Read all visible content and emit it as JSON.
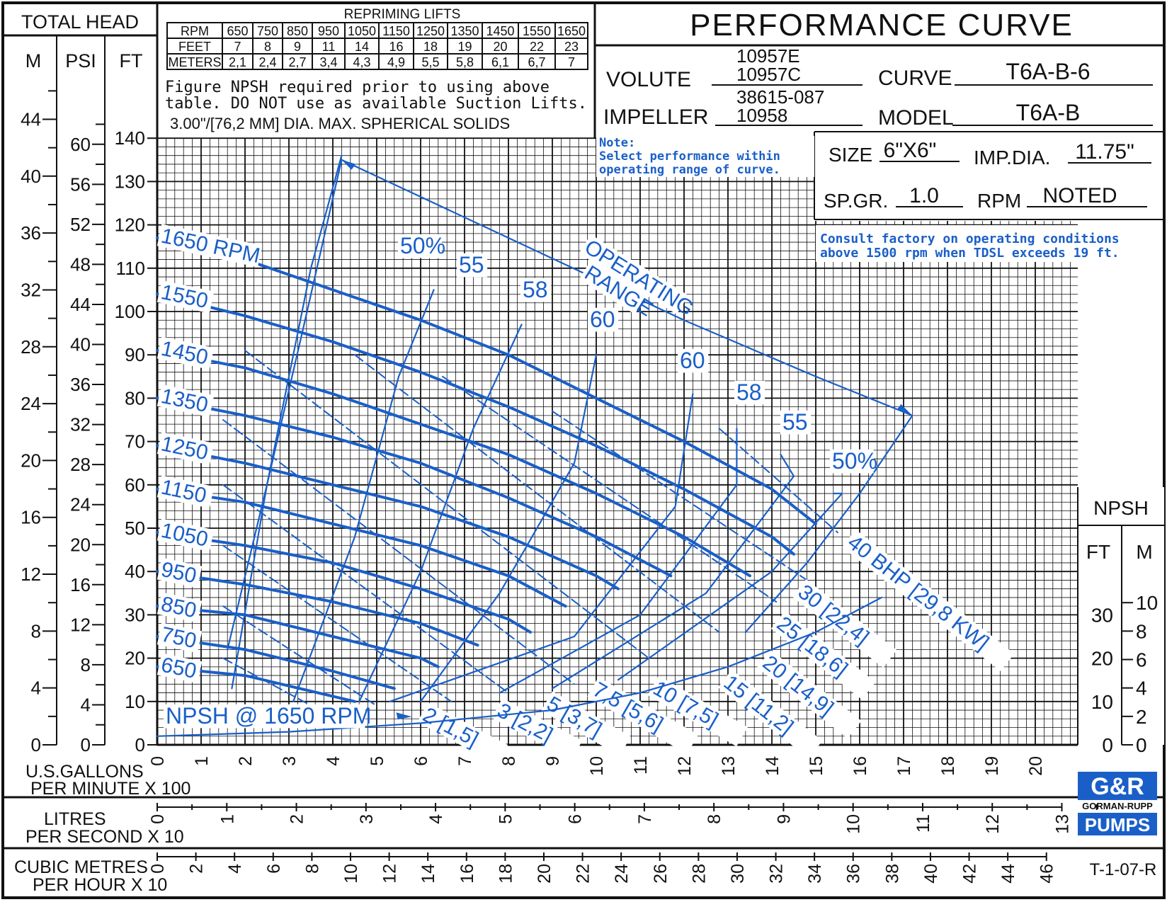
{
  "title_block": {
    "title": "PERFORMANCE CURVE",
    "volute_label": "VOLUTE",
    "volute_values": [
      "10957E",
      "10957C"
    ],
    "impeller_label": "IMPELLER",
    "impeller_values": [
      "38615-087",
      "10958"
    ],
    "curve_label": "CURVE",
    "curve_value": "T6A-B-6",
    "model_label": "MODEL",
    "model_value": "T6A-B",
    "size_label": "SIZE",
    "size_value": "6\"X6\"",
    "imp_dia_label": "IMP.DIA.",
    "imp_dia_value": "11.75\"",
    "sp_gr_label": "SP.GR.",
    "sp_gr_value": "1.0",
    "rpm_label": "RPM",
    "rpm_value": "NOTED",
    "note_lines": [
      "Note:",
      "Select performance within",
      "operating range of curve."
    ],
    "consult_lines": [
      "Consult factory on operating conditions",
      "above 1500 rpm when TDSL exceeds 19 ft."
    ],
    "drawing_number": "T-1-07-R",
    "logo_top": "G&R",
    "logo_name": "GORMAN-RUPP",
    "logo_pumps": "PUMPS"
  },
  "repriming": {
    "title": "REPRIMING LIFTS",
    "row_labels": [
      "RPM",
      "FEET",
      "METERS"
    ],
    "rpm": [
      "650",
      "750",
      "850",
      "950",
      "1050",
      "1150",
      "1250",
      "1350",
      "1450",
      "1550",
      "1650"
    ],
    "feet": [
      "7",
      "8",
      "9",
      "11",
      "14",
      "16",
      "18",
      "19",
      "20",
      "22",
      "23"
    ],
    "meters": [
      "2,1",
      "2,4",
      "2,7",
      "3,4",
      "4,3",
      "4,9",
      "5,5",
      "5,8",
      "6,1",
      "6,7",
      "7"
    ],
    "notes": [
      "Figure NPSH required prior to using above",
      "table. DO NOT use as available Suction Lifts.",
      "3.00\"/[76,2 MM] DIA. MAX. SPHERICAL SOLIDS"
    ]
  },
  "axes": {
    "total_head_label": "TOTAL HEAD",
    "m_label": "M",
    "psi_label": "PSI",
    "ft_label": "FT",
    "m_ticks": [
      "0",
      "4",
      "8",
      "12",
      "16",
      "20",
      "24",
      "28",
      "32",
      "36",
      "40",
      "44"
    ],
    "psi_ticks": [
      "0",
      "4",
      "8",
      "12",
      "16",
      "20",
      "24",
      "28",
      "32",
      "36",
      "40",
      "44",
      "48",
      "52",
      "56",
      "60"
    ],
    "ft_ticks": [
      "0",
      "10",
      "20",
      "30",
      "40",
      "50",
      "60",
      "70",
      "80",
      "90",
      "100",
      "110",
      "120",
      "130",
      "140"
    ],
    "gpm_label_1": "U.S.GALLONS",
    "gpm_label_2": "PER MINUTE X 100",
    "gpm_ticks": [
      "0",
      "1",
      "2",
      "3",
      "4",
      "5",
      "6",
      "7",
      "8",
      "9",
      "10",
      "11",
      "12",
      "13",
      "14",
      "15",
      "16",
      "17",
      "18",
      "19",
      "20"
    ],
    "lps_label_1": "LITRES",
    "lps_label_2": "PER SECOND X 10",
    "lps_ticks": [
      "0",
      "1",
      "2",
      "3",
      "4",
      "5",
      "6",
      "7",
      "8",
      "9",
      "10",
      "11",
      "12",
      "13"
    ],
    "cmh_label_1": "CUBIC METRES",
    "cmh_label_2": "PER HOUR X 10",
    "cmh_ticks": [
      "0",
      "2",
      "4",
      "6",
      "8",
      "10",
      "12",
      "14",
      "16",
      "18",
      "20",
      "22",
      "24",
      "26",
      "28",
      "30",
      "32",
      "34",
      "36",
      "38",
      "40",
      "42",
      "44",
      "46"
    ],
    "npsh_label": "NPSH",
    "npsh_ft_label": "FT",
    "npsh_m_label": "M",
    "npsh_ft_ticks": [
      "0",
      "10",
      "20",
      "30"
    ],
    "npsh_m_ticks": [
      "0",
      "2",
      "4",
      "6",
      "8",
      "10"
    ]
  },
  "chart_data": {
    "type": "line",
    "x_unit": "U.S. gallons per minute x 100",
    "y_unit": "total head, ft",
    "xlim": [
      0,
      20
    ],
    "ylim": [
      0,
      140
    ],
    "grid": true,
    "head_curves": [
      {
        "name": "1650 RPM",
        "label": "1650 RPM",
        "x": [
          0,
          2,
          4,
          6,
          8,
          10,
          12,
          14,
          15
        ],
        "y": [
          117,
          112,
          105,
          98,
          90,
          80,
          70,
          59,
          51
        ]
      },
      {
        "name": "1550",
        "label": "1550",
        "x": [
          0,
          2,
          4,
          6,
          8,
          10,
          12,
          14,
          14.5
        ],
        "y": [
          104,
          99,
          93,
          86,
          78,
          69,
          59,
          48,
          44
        ]
      },
      {
        "name": "1450",
        "label": "1450",
        "x": [
          0,
          2,
          4,
          6,
          8,
          10,
          12,
          13.5
        ],
        "y": [
          91,
          87,
          81,
          74,
          67,
          58,
          48,
          39
        ]
      },
      {
        "name": "1350",
        "label": "1350",
        "x": [
          0,
          2,
          4,
          6,
          8,
          10,
          11.7
        ],
        "y": [
          80,
          76,
          71,
          65,
          57,
          48,
          39
        ]
      },
      {
        "name": "1250",
        "label": "1250",
        "x": [
          0,
          2,
          4,
          6,
          8,
          10,
          10.5
        ],
        "y": [
          69,
          65,
          60,
          55,
          48,
          39,
          36
        ]
      },
      {
        "name": "1150",
        "label": "1150",
        "x": [
          0,
          2,
          4,
          6,
          8,
          9.3
        ],
        "y": [
          59,
          56,
          51,
          46,
          39,
          32
        ]
      },
      {
        "name": "1050",
        "label": "1050",
        "x": [
          0,
          2,
          4,
          6,
          8,
          8.5
        ],
        "y": [
          49,
          46,
          42,
          36,
          29,
          26
        ]
      },
      {
        "name": "950",
        "label": "950",
        "x": [
          0,
          2,
          4,
          6,
          7.3
        ],
        "y": [
          40,
          37,
          33,
          28,
          23
        ]
      },
      {
        "name": "850",
        "label": "850",
        "x": [
          0,
          2,
          4,
          6,
          6.4
        ],
        "y": [
          32,
          30,
          25,
          20,
          18
        ]
      },
      {
        "name": "750",
        "label": "750",
        "x": [
          0,
          2,
          4,
          5.4
        ],
        "y": [
          25,
          22,
          17,
          13
        ]
      },
      {
        "name": "650",
        "label": "650",
        "x": [
          0,
          2,
          4.5
        ],
        "y": [
          18,
          16,
          10
        ]
      }
    ],
    "efficiency_curves": [
      {
        "label": "50%",
        "x": [
          1.7,
          2.5,
          3.5,
          4.2
        ],
        "y": [
          13,
          60,
          110,
          136
        ]
      },
      {
        "label": "55",
        "x": [
          3.1,
          4.5,
          5.5,
          6.3
        ],
        "y": [
          10,
          48,
          85,
          105
        ]
      },
      {
        "label": "58",
        "x": [
          4.6,
          6.0,
          7.2,
          8.3
        ],
        "y": [
          10,
          40,
          73,
          97
        ]
      },
      {
        "label": "60",
        "x": [
          6.0,
          7.8,
          9.5,
          10.0
        ],
        "y": [
          10,
          35,
          65,
          90
        ]
      }
    ],
    "efficiency_curves_right": [
      {
        "label": "60",
        "x": [
          5.3,
          9.5,
          11.8,
          12.2
        ],
        "y": [
          10,
          25,
          55,
          81
        ]
      },
      {
        "label": "58",
        "x": [
          7.8,
          11.0,
          13.2,
          13.2
        ],
        "y": [
          12,
          30,
          60,
          73
        ]
      },
      {
        "label": "55",
        "x": [
          9.0,
          12.5,
          14.5,
          14.2
        ],
        "y": [
          13,
          35,
          62,
          67
        ]
      },
      {
        "label": "50%",
        "x": [
          10.5,
          14.0,
          15.6,
          15.4
        ],
        "y": [
          15,
          40,
          58,
          58
        ]
      }
    ],
    "bhp_lines": [
      {
        "label": "40 BHP [29,8 KW]",
        "x": [
          12.8,
          15.5
        ],
        "y": [
          73,
          49
        ]
      },
      {
        "label": "30 [22,4]",
        "x": [
          9.0,
          14.8
        ],
        "y": [
          77,
          38
        ]
      },
      {
        "label": "25 [18,6]",
        "x": [
          6.5,
          14.1
        ],
        "y": [
          85,
          33
        ]
      },
      {
        "label": "20 [14,9]",
        "x": [
          4.5,
          12.8
        ],
        "y": [
          90,
          26
        ]
      },
      {
        "label": "15 [11,2]",
        "x": [
          2.0,
          11.2
        ],
        "y": [
          91,
          20
        ]
      },
      {
        "label": "10 [7,5]",
        "x": [
          1.5,
          9.5
        ],
        "y": [
          75,
          14
        ]
      },
      {
        "label": "7,5 [5,6]",
        "x": [
          1.5,
          8.0
        ],
        "y": [
          60,
          12
        ]
      },
      {
        "label": "5 [3,7]",
        "x": [
          1.5,
          6.7
        ],
        "y": [
          46,
          10
        ]
      },
      {
        "label": "3 [2,2]",
        "x": [
          1.5,
          5.0
        ],
        "y": [
          32,
          9
        ]
      },
      {
        "label": "2 [1,5]",
        "x": [
          1.5,
          3.7
        ],
        "y": [
          20,
          8
        ]
      }
    ],
    "npsh_curve": {
      "label": "NPSH @ 1650 RPM",
      "x": [
        0,
        3,
        6,
        9,
        11,
        13,
        15,
        16.5
      ],
      "y": [
        2,
        3,
        5,
        8,
        12,
        18,
        26,
        34
      ]
    },
    "operating_range": {
      "label": "OPERATING RANGE",
      "x": [
        4.2,
        8.0,
        12.0,
        15.0,
        17.2
      ],
      "y": [
        135,
        117,
        98,
        85,
        76
      ]
    }
  }
}
